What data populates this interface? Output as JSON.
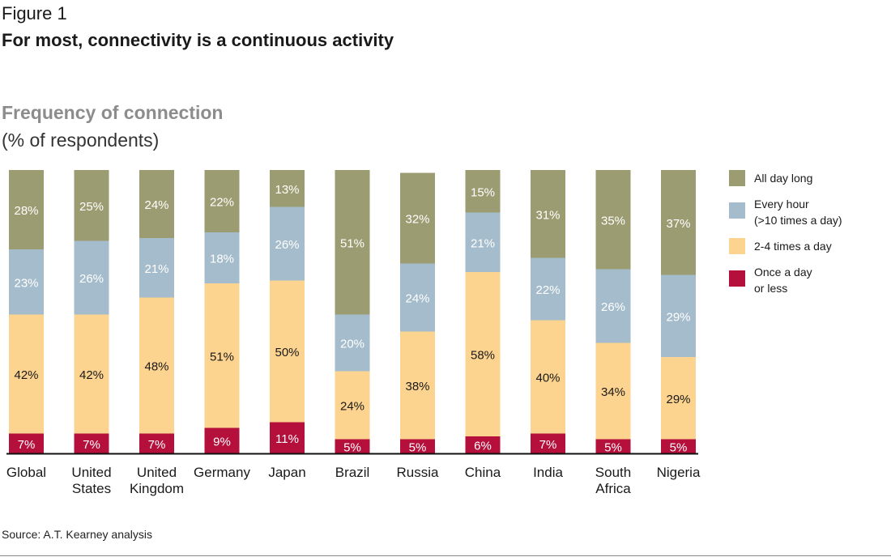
{
  "figure": {
    "label": "Figure 1",
    "title": "For most, connectivity is a continuous activity",
    "source": "Source: A.T. Kearney analysis"
  },
  "chart_data": {
    "type": "bar",
    "stacked": true,
    "title": "Frequency of connection",
    "subtitle": "(% of respondents)",
    "categories": [
      [
        "Global"
      ],
      [
        "United",
        "States"
      ],
      [
        "United",
        "Kingdom"
      ],
      [
        "Germany"
      ],
      [
        "Japan"
      ],
      [
        "Brazil"
      ],
      [
        "Russia"
      ],
      [
        "China"
      ],
      [
        "India"
      ],
      [
        "South",
        "Africa"
      ],
      [
        "Nigeria"
      ]
    ],
    "series": [
      {
        "name": "Once a day or less",
        "legend_lines": [
          "Once a day",
          "or less"
        ],
        "color": "#b5103c",
        "values": [
          7,
          7,
          7,
          9,
          11,
          5,
          5,
          6,
          7,
          5,
          5
        ]
      },
      {
        "name": "2-4 times a day",
        "legend_lines": [
          "2-4 times a day"
        ],
        "color": "#fcd38f",
        "values": [
          42,
          42,
          48,
          51,
          50,
          24,
          38,
          58,
          40,
          34,
          29
        ]
      },
      {
        "name": "Every hour (>10 times a day)",
        "legend_lines": [
          "Every hour",
          "(>10 times a day)"
        ],
        "color": "#a4bccb",
        "values": [
          23,
          26,
          21,
          18,
          26,
          20,
          24,
          21,
          22,
          26,
          29
        ]
      },
      {
        "name": "All day long",
        "legend_lines": [
          "All day long"
        ],
        "color": "#9c9c72",
        "values": [
          28,
          25,
          24,
          22,
          13,
          51,
          32,
          15,
          31,
          35,
          37
        ]
      }
    ],
    "legend_order": [
      3,
      2,
      1,
      0
    ],
    "ylim": [
      0,
      100
    ],
    "value_suffix": "%",
    "legend_position": "right",
    "grid": false
  }
}
